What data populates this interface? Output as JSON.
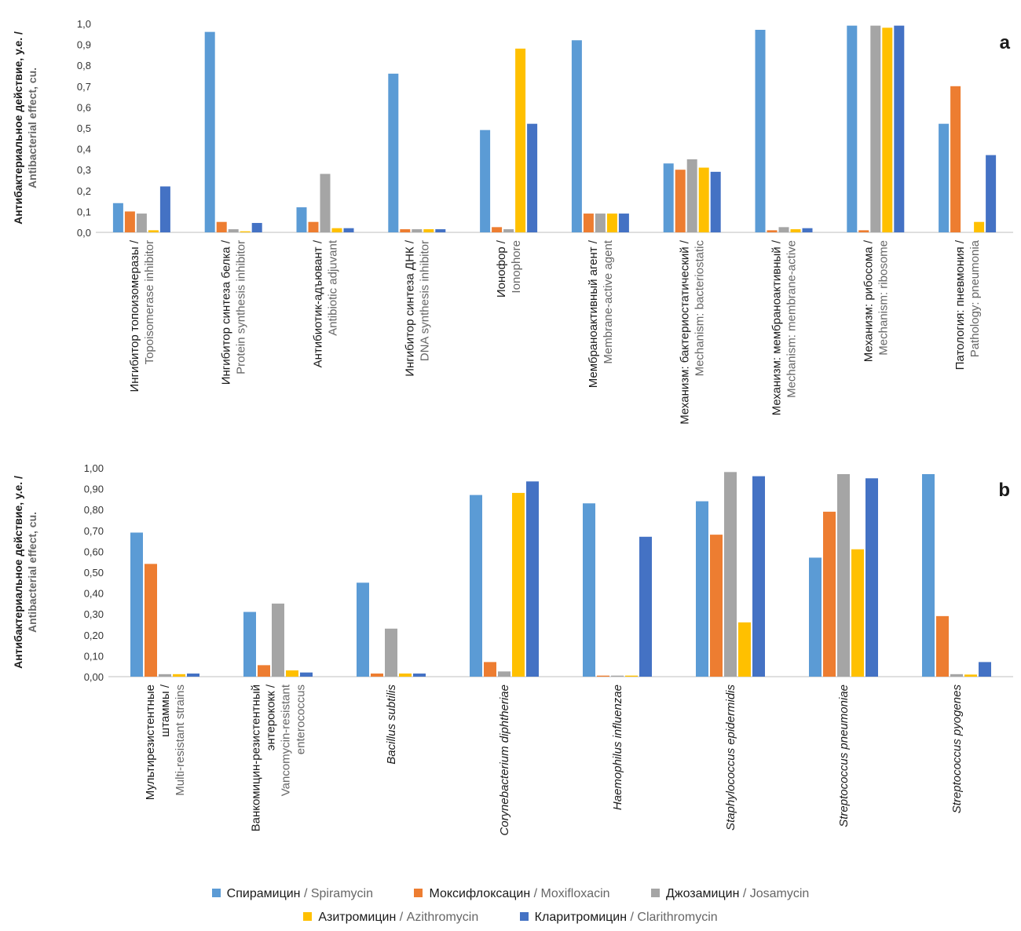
{
  "series_meta": [
    {
      "ru": "Спирамицин",
      "en": "Spiramycin",
      "color": "#5b9bd5"
    },
    {
      "ru": "Моксифлоксацин",
      "en": "Moxifloxacin",
      "color": "#ed7d31"
    },
    {
      "ru": "Джозамицин",
      "en": "Josamycin",
      "color": "#a5a5a5"
    },
    {
      "ru": "Азитромицин",
      "en": "Azithromycin",
      "color": "#ffc000"
    },
    {
      "ru": "Кларитромицин",
      "en": "Clarithromycin",
      "color": "#4472c4"
    }
  ],
  "chart_data": [
    {
      "type": "bar",
      "panel_label": "a",
      "ylabel_ru": "Антибактериальное действие, у.е. /",
      "ylabel_en": "Antibacterial effect, cu.",
      "ylim": [
        0,
        1.0
      ],
      "yticks": [
        "0,0",
        "0,1",
        "0,2",
        "0,3",
        "0,4",
        "0,5",
        "0,6",
        "0,7",
        "0,8",
        "0,9",
        "1,0"
      ],
      "grid": false,
      "legend": "bottom",
      "categories": [
        {
          "ru": [
            "Ингибитор топоизомеразы /"
          ],
          "en": [
            "Topoisomerase inhibitor"
          ]
        },
        {
          "ru": [
            "Ингибитор синтеза белка /"
          ],
          "en": [
            "Protein synthesis inhibitor"
          ]
        },
        {
          "ru": [
            "Антибиотик-адъювант /"
          ],
          "en": [
            "Antibiotic adjuvant"
          ]
        },
        {
          "ru": [
            "Ингибитор синтеза ДНК /"
          ],
          "en": [
            "DNA synthesis inhibitor"
          ]
        },
        {
          "ru": [
            "Ионофор /"
          ],
          "en": [
            "Ionophore"
          ]
        },
        {
          "ru": [
            "Мембраноактивный агент /"
          ],
          "en": [
            "Membrane-active agent"
          ]
        },
        {
          "ru": [
            "Механизм: бактериостатический /"
          ],
          "en": [
            "Mechanism: bacteriostatic"
          ]
        },
        {
          "ru": [
            "Механизм: мембраноактивный /"
          ],
          "en": [
            "Mechanism: membrane-active"
          ]
        },
        {
          "ru": [
            "Механизм: рибосома /"
          ],
          "en": [
            "Mechanism: ribosome"
          ]
        },
        {
          "ru": [
            "Патология: пневмония /"
          ],
          "en": [
            "Pathology: pneumonia"
          ]
        }
      ],
      "series": [
        {
          "name": "Спирамицин / Spiramycin",
          "values": [
            0.14,
            0.96,
            0.12,
            0.76,
            0.49,
            0.92,
            0.33,
            0.97,
            0.99,
            0.52
          ]
        },
        {
          "name": "Моксифлоксацин / Moxifloxacin",
          "values": [
            0.1,
            0.05,
            0.05,
            0.015,
            0.025,
            0.09,
            0.3,
            0.01,
            0.01,
            0.7
          ]
        },
        {
          "name": "Джозамицин / Josamycin",
          "values": [
            0.09,
            0.015,
            0.28,
            0.015,
            0.015,
            0.09,
            0.35,
            0.025,
            0.99,
            0.0
          ]
        },
        {
          "name": "Азитромицин / Azithromycin",
          "values": [
            0.01,
            0.005,
            0.02,
            0.015,
            0.88,
            0.09,
            0.31,
            0.015,
            0.98,
            0.05
          ]
        },
        {
          "name": "Кларитромицин / Clarithromycin",
          "values": [
            0.22,
            0.045,
            0.02,
            0.015,
            0.52,
            0.09,
            0.29,
            0.02,
            0.99,
            0.37
          ]
        }
      ]
    },
    {
      "type": "bar",
      "panel_label": "b",
      "ylabel_ru": "Антибактериальное действие, у.е. /",
      "ylabel_en": "Antibacterial effect, cu.",
      "ylim": [
        0,
        1.0
      ],
      "yticks": [
        "0,00",
        "0,10",
        "0,20",
        "0,30",
        "0,40",
        "0,50",
        "0,60",
        "0,70",
        "0,80",
        "0,90",
        "1,00"
      ],
      "grid": false,
      "legend": "bottom",
      "categories": [
        {
          "ru": [
            "Мультирезистентные",
            "штаммы /"
          ],
          "en": [
            "Multi-resistant strains"
          ]
        },
        {
          "ru": [
            "Ванкомицин-резистентный",
            "энтерококк /"
          ],
          "en": [
            "Vancomycin-resistant",
            "enterococcus"
          ]
        },
        {
          "ru": [],
          "en": [],
          "latin": [
            "Bacillus subtilis"
          ]
        },
        {
          "ru": [],
          "en": [],
          "latin": [
            "Corynebacterium diphtheriae"
          ]
        },
        {
          "ru": [],
          "en": [],
          "latin": [
            "Haemophilus influenzae"
          ]
        },
        {
          "ru": [],
          "en": [],
          "latin": [
            "Staphylococcus epidermidis"
          ]
        },
        {
          "ru": [],
          "en": [],
          "latin": [
            "Streptococcus pneumoniae"
          ]
        },
        {
          "ru": [],
          "en": [],
          "latin": [
            "Streptococcus pyogenes"
          ]
        }
      ],
      "series": [
        {
          "name": "Спирамицин / Spiramycin",
          "values": [
            0.69,
            0.31,
            0.45,
            0.87,
            0.83,
            0.84,
            0.57,
            0.97
          ]
        },
        {
          "name": "Моксифлоксацин / Moxifloxacin",
          "values": [
            0.54,
            0.055,
            0.015,
            0.07,
            0.005,
            0.68,
            0.79,
            0.29
          ]
        },
        {
          "name": "Джозамицин / Josamycin",
          "values": [
            0.012,
            0.35,
            0.23,
            0.025,
            0.005,
            0.98,
            0.97,
            0.012
          ]
        },
        {
          "name": "Азитромицин / Azithromycin",
          "values": [
            0.012,
            0.03,
            0.015,
            0.88,
            0.005,
            0.26,
            0.61,
            0.01
          ]
        },
        {
          "name": "Кларитромицин / Clarithromycin",
          "values": [
            0.015,
            0.02,
            0.015,
            0.935,
            0.67,
            0.96,
            0.95,
            0.07
          ]
        }
      ]
    }
  ]
}
